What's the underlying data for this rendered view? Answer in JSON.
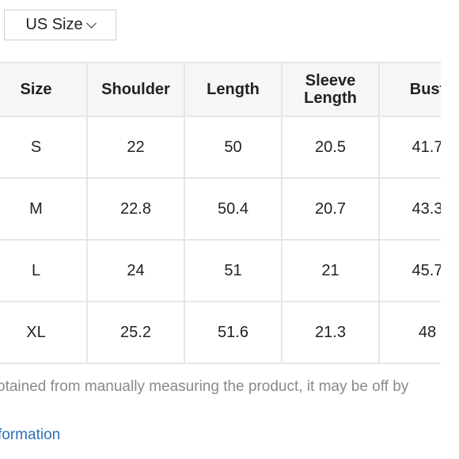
{
  "unit_selector": {
    "label": "US Size",
    "icon": "chevron-down-icon"
  },
  "size_table": {
    "headers": [
      "Size",
      "Shoulder",
      "Length",
      "Sleeve Length",
      "Bust"
    ],
    "header_lines": {
      "sleeve_line1": "Sleeve",
      "sleeve_line2": "Length"
    },
    "rows": [
      [
        "S",
        "22",
        "50",
        "20.5",
        "41.7"
      ],
      [
        "M",
        "22.8",
        "50.4",
        "20.7",
        "43.3"
      ],
      [
        "L",
        "24",
        "51",
        "21",
        "45.7"
      ],
      [
        "XL",
        "25.2",
        "51.6",
        "21.3",
        "48"
      ]
    ]
  },
  "footnote": {
    "text": "otained from manually measuring the product, it may be off by"
  },
  "info_link": {
    "label": "formation"
  },
  "colors": {
    "border": "#e6e6e6",
    "header_bg": "#f6f6f6",
    "note_text": "#8a8a8a",
    "link": "#2f6fb6"
  }
}
